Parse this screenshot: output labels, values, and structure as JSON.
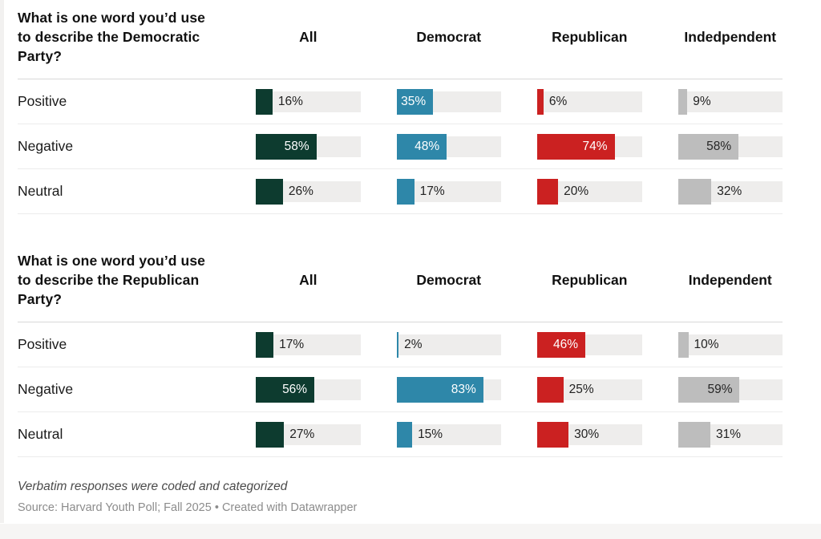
{
  "colors": {
    "all": "#0d3b2f",
    "democrat": "#2e87a9",
    "republican": "#cb2121",
    "independent": "#bdbdbd",
    "track": "#eeedec"
  },
  "tables": [
    {
      "question": "What is one word you’d use to describe the Democratic Party?",
      "columns": [
        "All",
        "Democrat",
        "Republican",
        "Indedpendent"
      ],
      "rows": [
        {
          "label": "Positive",
          "values": [
            16,
            35,
            6,
            9
          ]
        },
        {
          "label": "Negative",
          "values": [
            58,
            48,
            74,
            58
          ]
        },
        {
          "label": "Neutral",
          "values": [
            26,
            17,
            20,
            32
          ]
        }
      ]
    },
    {
      "question": "What is one word you’d use to describe the Republican Party?",
      "columns": [
        "All",
        "Democrat",
        "Republican",
        "Independent"
      ],
      "rows": [
        {
          "label": "Positive",
          "values": [
            17,
            2,
            46,
            10
          ]
        },
        {
          "label": "Negative",
          "values": [
            56,
            83,
            25,
            59
          ]
        },
        {
          "label": "Neutral",
          "values": [
            27,
            15,
            30,
            31
          ]
        }
      ]
    }
  ],
  "meta": {
    "footnote": "Verbatim responses were coded and categorized",
    "source": "Source: Harvard Youth Poll; Fall 2025 • Created with Datawrapper"
  },
  "chart_data": [
    {
      "type": "bar",
      "title": "What is one word you’d use to describe the Democratic Party?",
      "categories": [
        "Positive",
        "Negative",
        "Neutral"
      ],
      "series": [
        {
          "name": "All",
          "values": [
            16,
            58,
            26
          ]
        },
        {
          "name": "Democrat",
          "values": [
            35,
            48,
            17
          ]
        },
        {
          "name": "Republican",
          "values": [
            6,
            74,
            20
          ]
        },
        {
          "name": "Indedpendent",
          "values": [
            9,
            58,
            32
          ]
        }
      ],
      "unit": "%",
      "xlim": [
        0,
        100
      ],
      "layout": "small-multiple horizontal bars in gray tracks, one column per party group",
      "legend_position": "column headers"
    },
    {
      "type": "bar",
      "title": "What is one word you’d use to describe the Republican Party?",
      "categories": [
        "Positive",
        "Negative",
        "Neutral"
      ],
      "series": [
        {
          "name": "All",
          "values": [
            17,
            56,
            27
          ]
        },
        {
          "name": "Democrat",
          "values": [
            2,
            83,
            15
          ]
        },
        {
          "name": "Republican",
          "values": [
            46,
            25,
            30
          ]
        },
        {
          "name": "Independent",
          "values": [
            10,
            59,
            31
          ]
        }
      ],
      "unit": "%",
      "xlim": [
        0,
        100
      ],
      "layout": "small-multiple horizontal bars in gray tracks, one column per party group",
      "legend_position": "column headers"
    }
  ]
}
